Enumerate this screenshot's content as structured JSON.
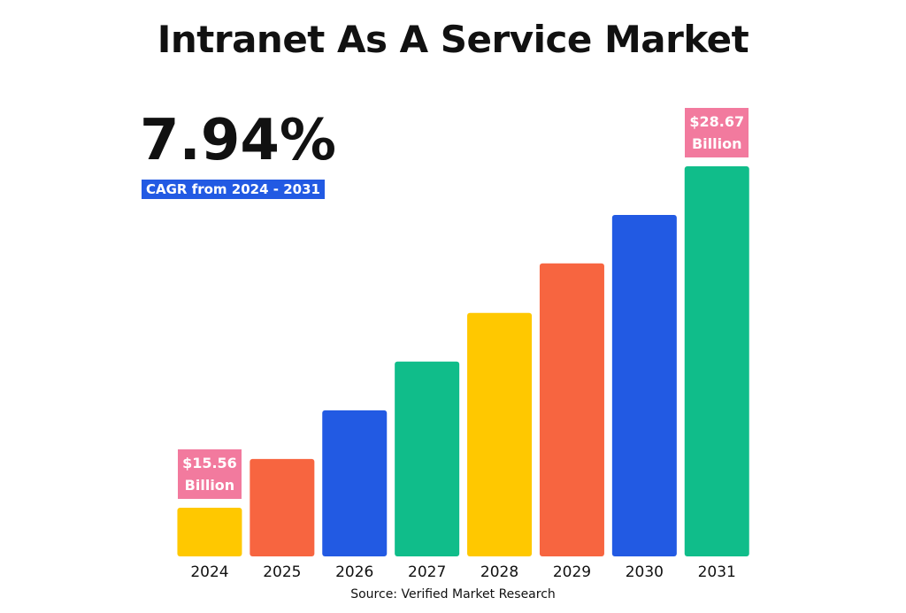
{
  "chart_data": {
    "type": "bar",
    "title": "Intranet As A Service Market",
    "cagr": "7.94%",
    "cagr_label": "CAGR from 2024 - 2031",
    "source": "Source: Verified Market Research",
    "categories": [
      "2024",
      "2025",
      "2026",
      "2027",
      "2028",
      "2029",
      "2030",
      "2031"
    ],
    "values": [
      15.56,
      17.43,
      19.3,
      21.17,
      23.04,
      24.94,
      26.8,
      28.67
    ],
    "value_labels": [
      "$15.56 Billion",
      null,
      null,
      null,
      null,
      null,
      null,
      "$28.67 Billion"
    ],
    "colors": [
      "#FFC800",
      "#F76540",
      "#225AE3",
      "#10BD8A",
      "#FFC800",
      "#F76540",
      "#225AE3",
      "#10BD8A"
    ],
    "label_color": "#F27A9E",
    "badge_color": "#225AE3",
    "ylim": [
      13.69,
      28.67
    ]
  }
}
